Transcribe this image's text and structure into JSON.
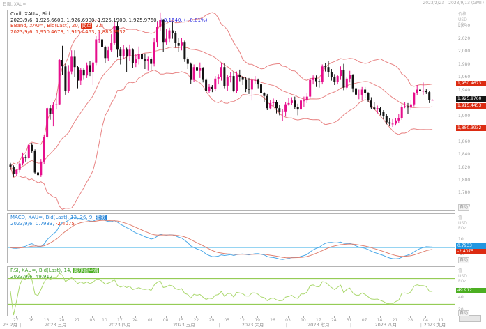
{
  "header": {
    "chart_tab": "日图, XAU=",
    "date_range": "2023/2/23 - 2023/9/13 (GMT)"
  },
  "colors": {
    "up": "#e60e8c",
    "down": "#141414",
    "bband": "#e88484",
    "macd": "#4aa8e8",
    "signal": "#e08070",
    "zero": "#74c6ee",
    "rsi": "#abd86e",
    "rsi_level": "#86c43e",
    "badge_red": "#dc2b12",
    "badge_black": "#141414",
    "badge_blue": "#2196e0",
    "badge_green": "#4caf22"
  },
  "main_panel": {
    "legend_line1": "Cndl, XAU=, Bid",
    "legend_line2_prefix": "2023/9/6, 1,925.6600, 1,926.6900, 1,925.1900, 1,925.9760, ",
    "legend_line2_change": "+0.1640, (+0.01%)",
    "legend_line3_prefix": "BBand, XAU=, Bid(Last), 20, ",
    "legend_line3_chip": "简单",
    "legend_line3_suffix": ", 2.0",
    "legend_line4": "2023/9/6, 1,950.4673, 1,915.4453, 1,880.3932",
    "axis_header": [
      "价格",
      "USD",
      "FOz"
    ],
    "badges": [
      {
        "text": "1,950.4673",
        "value": 1950.4673,
        "color": "#dc2b12"
      },
      {
        "text": "1,925.9760",
        "value": 1925.976,
        "color": "#141414"
      },
      {
        "text": "1,915.4453",
        "value": 1915.4453,
        "color": "#dc2b12"
      },
      {
        "text": "1,880.3932",
        "value": 1880.3932,
        "color": "#dc2b12"
      }
    ],
    "auto_label": "自动"
  },
  "macd_panel": {
    "legend_line1_prefix": "MACD, XAU=, Bid(Last), 12, 26, 9, ",
    "legend_line1_chip": "指数",
    "legend_line2_blue": "2023/9/6, 0.7933, ",
    "legend_line2_red": "-2.4075",
    "axis_header": [
      "值",
      "USD",
      "FOz"
    ],
    "badges": [
      {
        "text": "0.7933",
        "value": 0.7933,
        "color": "#2196e0"
      },
      {
        "text": "-2.4075",
        "value": -2.4075,
        "color": "#dc2b12"
      }
    ],
    "auto_label": "自动"
  },
  "rsi_panel": {
    "legend_line1_prefix": "RSI, XAU=, Bid(Last), 14, ",
    "legend_line1_chip": "威尔德平滑",
    "legend_line2": "2023/9/6, 49.912",
    "axis_header": [
      "值",
      "USD",
      "FOz"
    ],
    "badges": [
      {
        "text": "49.912",
        "value": 49.912,
        "color": "#4caf22"
      }
    ],
    "auto_label": "自动"
  },
  "chart_data": {
    "type": "candlestick",
    "instrument": "XAU=",
    "interval": "daily",
    "ylim_main": [
      1755,
      2065
    ],
    "y_ticks_main": [
      "2,040",
      "2,020",
      "2,000",
      "1,980",
      "1,960",
      "1,940",
      "1,900",
      "1,860",
      "1,840",
      "1,820",
      "1,800",
      "1,780",
      "1,760"
    ],
    "macd_ticks": [
      "10",
      "-10"
    ],
    "rsi_ticks": [
      "40",
      "20"
    ],
    "rsi_fit": [
      12,
      88
    ],
    "rsi_levels": [
      70,
      30
    ],
    "n_slots": 144,
    "indicators": {
      "bband": {
        "period": 20,
        "type": "简单",
        "mult": 2.0
      },
      "macd": {
        "fast": 12,
        "slow": 26,
        "signal": 9,
        "mode": "指数"
      },
      "rsi": {
        "period": 14,
        "mode": "威尔德平滑"
      }
    },
    "x_axis": {
      "start_label": "23 2月",
      "months": [
        {
          "m": 3,
          "label": "2023 三月"
        },
        {
          "m": 4,
          "label": "2023 四月"
        },
        {
          "m": 5,
          "label": "2023 五月"
        },
        {
          "m": 6,
          "label": "2023 六月"
        },
        {
          "m": 7,
          "label": "2023 七月"
        },
        {
          "m": 8,
          "label": "2023 八月"
        },
        {
          "m": 9,
          "label": "2023 九月"
        }
      ],
      "extra_ticks": [
        {
          "label": "11",
          "slot": 141
        }
      ]
    },
    "candles": [
      [
        2,
        23,
        1825,
        1828,
        1817,
        1822
      ],
      [
        2,
        24,
        1822,
        1824,
        1806,
        1811
      ],
      [
        2,
        27,
        1811,
        1819,
        1807,
        1817
      ],
      [
        2,
        28,
        1817,
        1829,
        1813,
        1827
      ],
      [
        3,
        1,
        1827,
        1844,
        1824,
        1837
      ],
      [
        3,
        2,
        1837,
        1841,
        1830,
        1836
      ],
      [
        3,
        3,
        1836,
        1858,
        1834,
        1856
      ],
      [
        3,
        6,
        1856,
        1859,
        1844,
        1847
      ],
      [
        3,
        7,
        1847,
        1849,
        1811,
        1813
      ],
      [
        3,
        8,
        1813,
        1818,
        1804,
        1809
      ],
      [
        3,
        9,
        1809,
        1834,
        1806,
        1830
      ],
      [
        3,
        10,
        1830,
        1872,
        1826,
        1868
      ],
      [
        3,
        13,
        1868,
        1915,
        1866,
        1913
      ],
      [
        3,
        14,
        1913,
        1918,
        1895,
        1904
      ],
      [
        3,
        15,
        1904,
        1923,
        1885,
        1918
      ],
      [
        3,
        16,
        1918,
        1937,
        1911,
        1919
      ],
      [
        3,
        17,
        1919,
        1990,
        1918,
        1988
      ],
      [
        3,
        20,
        1988,
        2010,
        1965,
        1978
      ],
      [
        3,
        21,
        1978,
        1982,
        1934,
        1940
      ],
      [
        3,
        22,
        1940,
        1980,
        1936,
        1970
      ],
      [
        3,
        23,
        1970,
        2003,
        1966,
        1993
      ],
      [
        3,
        24,
        1993,
        2003,
        1962,
        1977
      ],
      [
        3,
        27,
        1977,
        1979,
        1944,
        1956
      ],
      [
        3,
        28,
        1956,
        1975,
        1949,
        1973
      ],
      [
        3,
        29,
        1973,
        1975,
        1957,
        1964
      ],
      [
        3,
        30,
        1964,
        1984,
        1960,
        1980
      ],
      [
        3,
        31,
        1980,
        1987,
        1963,
        1969
      ],
      [
        4,
        3,
        1969,
        1988,
        1949,
        1984
      ],
      [
        4,
        4,
        1984,
        2025,
        1980,
        2020
      ],
      [
        4,
        5,
        2020,
        2032,
        2015,
        2020
      ],
      [
        4,
        6,
        2020,
        2022,
        2002,
        2008
      ],
      [
        4,
        10,
        2008,
        2010,
        1983,
        1991
      ],
      [
        4,
        11,
        1991,
        2009,
        1986,
        2003
      ],
      [
        4,
        12,
        2003,
        2028,
        2001,
        2015
      ],
      [
        4,
        13,
        2015,
        2048,
        2012,
        2040
      ],
      [
        4,
        14,
        2040,
        2048,
        1992,
        2004
      ],
      [
        4,
        17,
        2004,
        2008,
        1981,
        1994
      ],
      [
        4,
        18,
        1994,
        2011,
        1989,
        2004
      ],
      [
        4,
        19,
        2004,
        2007,
        1969,
        1994
      ],
      [
        4,
        20,
        1994,
        2012,
        1987,
        2004
      ],
      [
        4,
        21,
        2004,
        2006,
        1976,
        1983
      ],
      [
        4,
        24,
        1983,
        1997,
        1977,
        1989
      ],
      [
        4,
        25,
        1989,
        2009,
        1981,
        1997
      ],
      [
        4,
        26,
        1997,
        2013,
        1987,
        1989
      ],
      [
        4,
        27,
        1989,
        1998,
        1974,
        1987
      ],
      [
        4,
        28,
        1987,
        1993,
        1971,
        1990
      ],
      [
        5,
        1,
        1990,
        1992,
        1973,
        1982
      ],
      [
        5,
        2,
        1982,
        2022,
        1978,
        2016
      ],
      [
        5,
        3,
        2016,
        2048,
        2008,
        2039
      ],
      [
        5,
        4,
        2039,
        2062,
        2033,
        2050
      ],
      [
        5,
        5,
        2050,
        2052,
        2001,
        2016
      ],
      [
        5,
        8,
        2016,
        2036,
        2012,
        2021
      ],
      [
        5,
        9,
        2021,
        2038,
        2016,
        2034
      ],
      [
        5,
        10,
        2034,
        2048,
        2021,
        2030
      ],
      [
        5,
        11,
        2030,
        2033,
        2007,
        2015
      ],
      [
        5,
        12,
        2015,
        2022,
        2001,
        2010
      ],
      [
        5,
        15,
        2010,
        2022,
        2003,
        2016
      ],
      [
        5,
        16,
        2016,
        2018,
        1985,
        1989
      ],
      [
        5,
        17,
        1989,
        1992,
        1974,
        1982
      ],
      [
        5,
        18,
        1982,
        1984,
        1951,
        1957
      ],
      [
        5,
        19,
        1957,
        1981,
        1954,
        1977
      ],
      [
        5,
        22,
        1977,
        1982,
        1967,
        1971
      ],
      [
        5,
        23,
        1971,
        1984,
        1960,
        1975
      ],
      [
        5,
        24,
        1975,
        1977,
        1953,
        1957
      ],
      [
        5,
        25,
        1957,
        1960,
        1936,
        1940
      ],
      [
        5,
        26,
        1940,
        1951,
        1936,
        1946
      ],
      [
        5,
        29,
        1946,
        1949,
        1938,
        1943
      ],
      [
        5,
        30,
        1943,
        1963,
        1940,
        1959
      ],
      [
        5,
        31,
        1959,
        1966,
        1950,
        1962
      ],
      [
        6,
        1,
        1962,
        1983,
        1956,
        1977
      ],
      [
        6,
        2,
        1977,
        1983,
        1944,
        1948
      ],
      [
        6,
        5,
        1948,
        1965,
        1940,
        1962
      ],
      [
        6,
        6,
        1962,
        1969,
        1953,
        1963
      ],
      [
        6,
        7,
        1963,
        1970,
        1938,
        1940
      ],
      [
        6,
        8,
        1940,
        1970,
        1937,
        1965
      ],
      [
        6,
        9,
        1965,
        1973,
        1955,
        1961
      ],
      [
        6,
        12,
        1961,
        1963,
        1949,
        1957
      ],
      [
        6,
        13,
        1957,
        1962,
        1938,
        1943
      ],
      [
        6,
        14,
        1943,
        1960,
        1935,
        1942
      ],
      [
        6,
        15,
        1942,
        1960,
        1925,
        1957
      ],
      [
        6,
        16,
        1957,
        1963,
        1951,
        1957
      ],
      [
        6,
        19,
        1957,
        1959,
        1944,
        1950
      ],
      [
        6,
        20,
        1950,
        1954,
        1932,
        1936
      ],
      [
        6,
        21,
        1936,
        1938,
        1922,
        1932
      ],
      [
        6,
        22,
        1932,
        1935,
        1910,
        1913
      ],
      [
        6,
        23,
        1913,
        1926,
        1911,
        1921
      ],
      [
        6,
        26,
        1921,
        1928,
        1916,
        1923
      ],
      [
        6,
        27,
        1923,
        1926,
        1905,
        1913
      ],
      [
        6,
        28,
        1913,
        1918,
        1902,
        1907
      ],
      [
        6,
        29,
        1907,
        1912,
        1893,
        1908
      ],
      [
        6,
        30,
        1908,
        1922,
        1900,
        1919
      ],
      [
        7,
        3,
        1919,
        1929,
        1917,
        1921
      ],
      [
        7,
        4,
        1921,
        1930,
        1918,
        1925
      ],
      [
        7,
        5,
        1925,
        1931,
        1912,
        1915
      ],
      [
        7,
        6,
        1915,
        1920,
        1902,
        1911
      ],
      [
        7,
        7,
        1911,
        1933,
        1903,
        1925
      ],
      [
        7,
        10,
        1925,
        1931,
        1915,
        1925
      ],
      [
        7,
        11,
        1925,
        1936,
        1921,
        1931
      ],
      [
        7,
        12,
        1931,
        1960,
        1928,
        1957
      ],
      [
        7,
        13,
        1957,
        1964,
        1950,
        1960
      ],
      [
        7,
        14,
        1960,
        1964,
        1946,
        1955
      ],
      [
        7,
        17,
        1955,
        1959,
        1945,
        1954
      ],
      [
        7,
        18,
        1954,
        1981,
        1950,
        1978
      ],
      [
        7,
        19,
        1978,
        1983,
        1970,
        1977
      ],
      [
        7,
        20,
        1977,
        1987,
        1962,
        1969
      ],
      [
        7,
        21,
        1969,
        1974,
        1956,
        1961
      ],
      [
        7,
        24,
        1961,
        1966,
        1949,
        1954
      ],
      [
        7,
        25,
        1954,
        1965,
        1950,
        1963
      ],
      [
        7,
        26,
        1963,
        1978,
        1957,
        1972
      ],
      [
        7,
        27,
        1972,
        1982,
        1941,
        1945
      ],
      [
        7,
        28,
        1945,
        1961,
        1942,
        1959
      ],
      [
        7,
        31,
        1959,
        1971,
        1953,
        1965
      ],
      [
        8,
        1,
        1965,
        1966,
        1938,
        1944
      ],
      [
        8,
        2,
        1944,
        1947,
        1929,
        1934
      ],
      [
        8,
        3,
        1934,
        1942,
        1927,
        1934
      ],
      [
        8,
        4,
        1934,
        1946,
        1925,
        1942
      ],
      [
        8,
        7,
        1942,
        1946,
        1929,
        1936
      ],
      [
        8,
        8,
        1936,
        1938,
        1922,
        1925
      ],
      [
        8,
        9,
        1925,
        1930,
        1912,
        1914
      ],
      [
        8,
        10,
        1914,
        1923,
        1910,
        1912
      ],
      [
        8,
        11,
        1912,
        1917,
        1905,
        1913
      ],
      [
        8,
        14,
        1913,
        1915,
        1902,
        1907
      ],
      [
        8,
        15,
        1907,
        1910,
        1896,
        1901
      ],
      [
        8,
        16,
        1901,
        1904,
        1888,
        1891
      ],
      [
        8,
        17,
        1891,
        1897,
        1885,
        1889
      ],
      [
        8,
        18,
        1889,
        1896,
        1884,
        1889
      ],
      [
        8,
        21,
        1889,
        1898,
        1886,
        1894
      ],
      [
        8,
        22,
        1894,
        1904,
        1890,
        1897
      ],
      [
        8,
        23,
        1897,
        1919,
        1895,
        1915
      ],
      [
        8,
        24,
        1915,
        1923,
        1913,
        1916
      ],
      [
        8,
        25,
        1916,
        1921,
        1904,
        1914
      ],
      [
        8,
        28,
        1914,
        1926,
        1910,
        1919
      ],
      [
        8,
        29,
        1919,
        1938,
        1916,
        1937
      ],
      [
        8,
        30,
        1937,
        1949,
        1933,
        1942
      ],
      [
        8,
        31,
        1942,
        1949,
        1936,
        1940
      ],
      [
        9,
        1,
        1940,
        1953,
        1934,
        1940
      ],
      [
        9,
        4,
        1940,
        1943,
        1935,
        1938
      ],
      [
        9,
        5,
        1938,
        1940,
        1921,
        1926
      ],
      [
        9,
        6,
        1925.66,
        1926.69,
        1925.19,
        1925.98
      ]
    ]
  }
}
